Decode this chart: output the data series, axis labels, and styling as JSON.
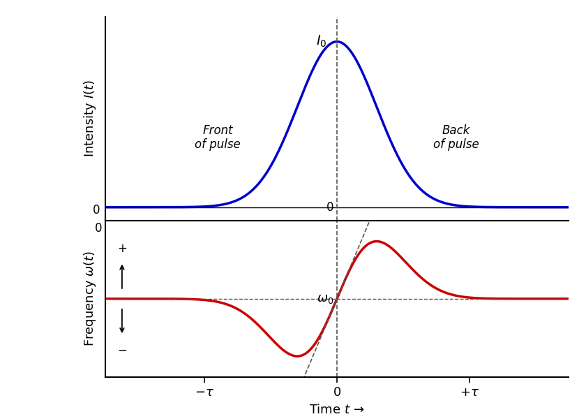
{
  "title": "",
  "xlabel": "Time $t$ →",
  "ylabel_top": "Intensity $I(t)$",
  "ylabel_bottom": "Frequency $\\omega(t)$",
  "bg_color": "#ffffff",
  "blue_color": "#0000cc",
  "red_color": "#cc0000",
  "dashed_color": "#555555",
  "front_pulse_text": "Front\nof pulse",
  "back_pulse_text": "Back\nof pulse",
  "tau": 2.0,
  "sigma": 0.6,
  "x_min": -3.5,
  "x_max": 3.5
}
